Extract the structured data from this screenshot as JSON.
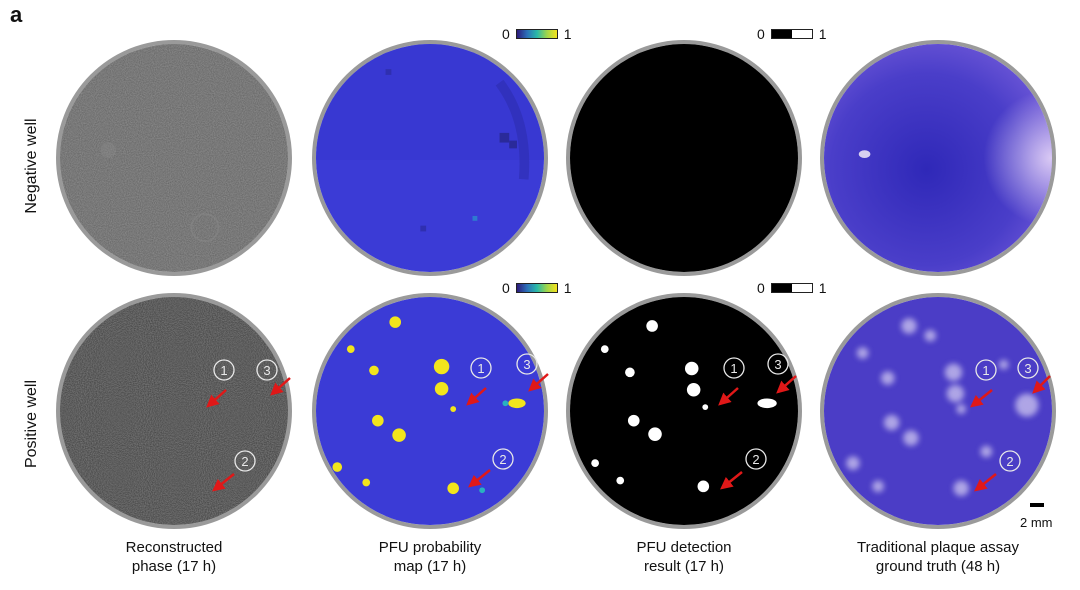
{
  "panel_letter": "a",
  "rows": {
    "negative": "Negative well",
    "positive": "Positive well"
  },
  "colorbars": {
    "probability": {
      "min": "0",
      "max": "1"
    },
    "detection": {
      "min": "0",
      "max": "1"
    }
  },
  "markers": [
    "1",
    "2",
    "3"
  ],
  "columns": [
    {
      "caption_line1": "Reconstructed",
      "caption_line2": "phase (17 h)"
    },
    {
      "caption_line1": "PFU probability",
      "caption_line2": "map (17 h)"
    },
    {
      "caption_line1": "PFU detection",
      "caption_line2": "result (17 h)"
    },
    {
      "caption_line1": "Traditional plaque assay",
      "caption_line2": "ground truth (48 h)"
    }
  ],
  "scale_bar": "2 mm",
  "colors": {
    "phase_bg": "#5a5a5a",
    "probability_bg": "#3a3ad8",
    "plaque_yellow": "#f2e51c",
    "detection_bg": "#000000",
    "stain_bg": "#4a3cc8",
    "arrow": "#e01818"
  }
}
